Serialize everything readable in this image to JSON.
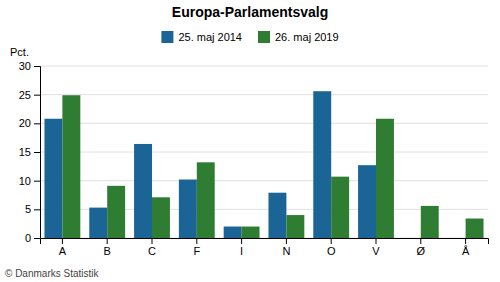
{
  "chart_data": {
    "type": "bar",
    "title": "Europa-Parlamentsvalg",
    "categories": [
      "A",
      "B",
      "C",
      "F",
      "I",
      "N",
      "O",
      "V",
      "Ø",
      "Å"
    ],
    "series": [
      {
        "name": "25. maj 2014",
        "color": "#1a6496",
        "values": [
          20.8,
          5.3,
          16.4,
          10.2,
          2.0,
          7.9,
          25.6,
          12.7,
          0.0,
          0.0
        ]
      },
      {
        "name": "26. maj 2019",
        "color": "#2e7d32",
        "values": [
          24.9,
          9.1,
          7.1,
          13.2,
          2.0,
          4.0,
          10.7,
          20.8,
          5.6,
          3.4
        ]
      }
    ],
    "ylabel": "Pct.",
    "ylim": [
      0,
      30
    ],
    "yticks": [
      0,
      5,
      10,
      15,
      20,
      25,
      30
    ],
    "grid": true,
    "legend": "top",
    "annotations": [
      "© Danmarks Statistik"
    ]
  }
}
